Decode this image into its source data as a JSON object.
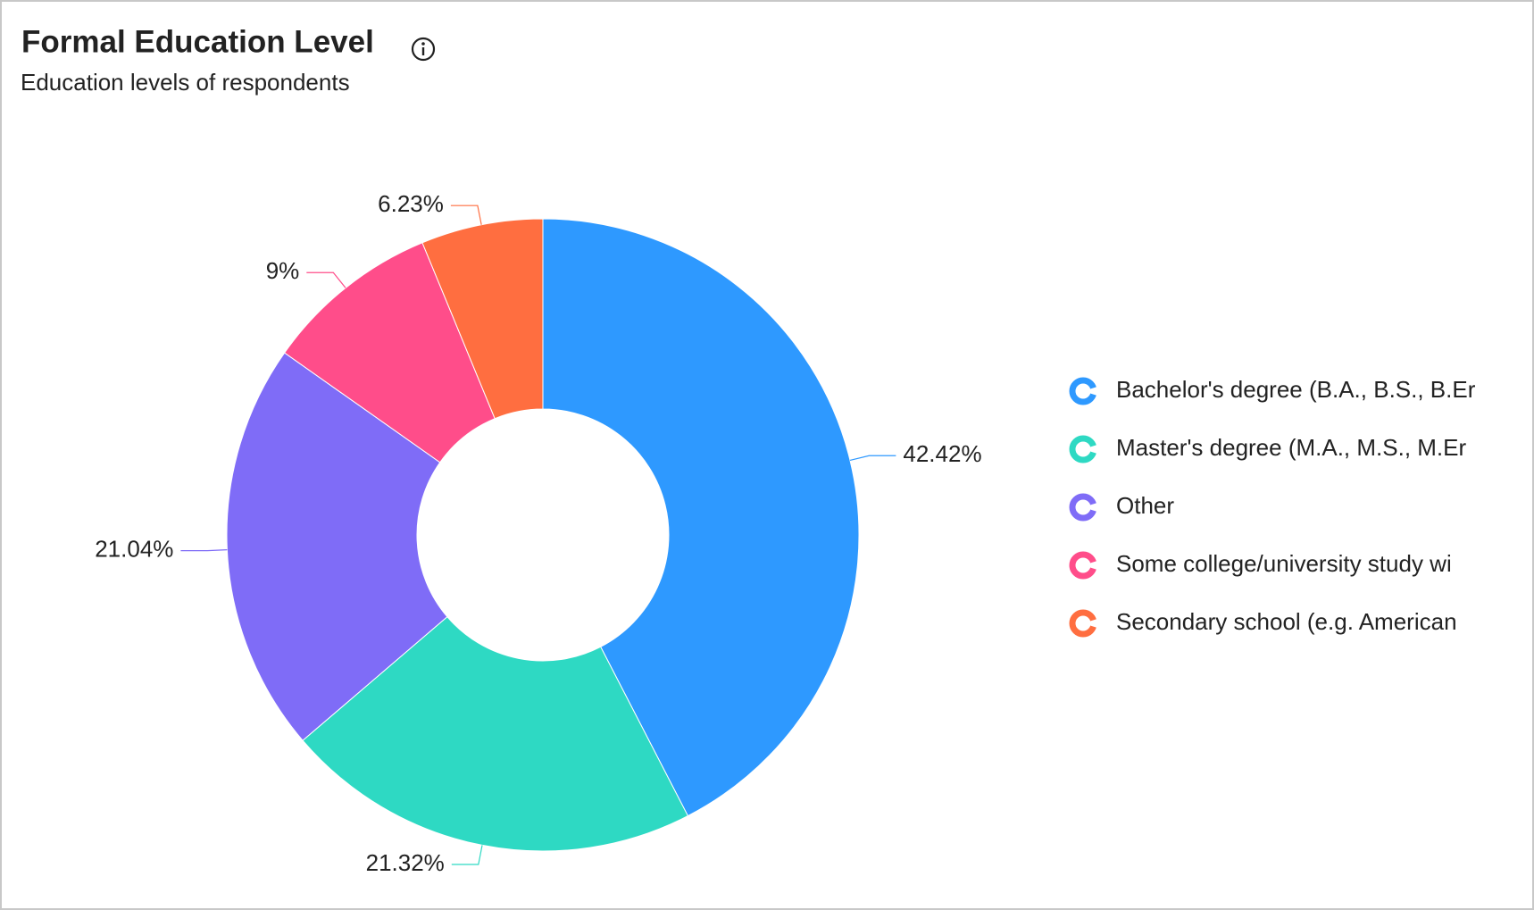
{
  "chart_data": {
    "type": "pie",
    "donut": true,
    "title": "Formal Education Level",
    "subtitle": "Education levels of respondents",
    "categories": [
      "Bachelor's degree (B.A., B.S., B.Er",
      "Master's degree (M.A., M.S., M.Er",
      "Other",
      "Some college/university study wi",
      "Secondary school (e.g. American"
    ],
    "values": [
      42.42,
      21.32,
      21.04,
      9,
      6.23
    ],
    "value_labels": [
      "42.42%",
      "21.32%",
      "21.04%",
      "9%",
      "6.23%"
    ],
    "colors": [
      "#2e99ff",
      "#2ed9c3",
      "#7f6cf7",
      "#ff4d8a",
      "#ff6e40"
    ],
    "legend": "right"
  }
}
